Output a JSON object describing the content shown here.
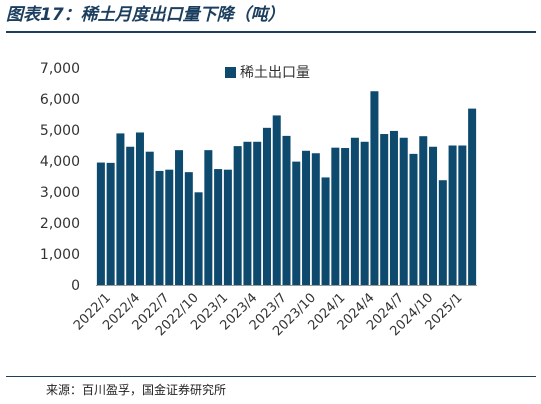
{
  "figure": {
    "title": "图表17：稀土月度出口量下降（吨）",
    "source": "来源：百川盈孚，国金证券研究所"
  },
  "colors": {
    "bar": "#0d4a6e",
    "title": "#1c3f5f",
    "axis": "#9a9a9a",
    "text": "#333333"
  },
  "chart_data": {
    "type": "bar",
    "categories": [
      "2022/1",
      "2022/2",
      "2022/3",
      "2022/4",
      "2022/5",
      "2022/6",
      "2022/7",
      "2022/8",
      "2022/9",
      "2022/10",
      "2022/11",
      "2022/12",
      "2023/1",
      "2023/2",
      "2023/3",
      "2023/4",
      "2023/5",
      "2023/6",
      "2023/7",
      "2023/8",
      "2023/9",
      "2023/10",
      "2023/11",
      "2023/12",
      "2024/1",
      "2024/2",
      "2024/3",
      "2024/4",
      "2024/5",
      "2024/6",
      "2024/7",
      "2024/8",
      "2024/9",
      "2024/10",
      "2024/11",
      "2024/12",
      "2025/1",
      "2025/2",
      "2025/3"
    ],
    "tick_labels": [
      "2022/1",
      "2022/4",
      "2022/7",
      "2022/10",
      "2023/1",
      "2023/4",
      "2023/7",
      "2023/10",
      "2024/1",
      "2024/4",
      "2024/7",
      "2024/10",
      "2025/1"
    ],
    "series": [
      {
        "name": "稀土出口量",
        "values": [
          3950,
          3940,
          4890,
          4460,
          4920,
          4300,
          3680,
          3720,
          4350,
          3640,
          2990,
          4350,
          3740,
          3720,
          4480,
          4620,
          4620,
          5070,
          5470,
          4810,
          3980,
          4330,
          4250,
          3470,
          4430,
          4420,
          4750,
          4620,
          6250,
          4870,
          4970,
          4750,
          4230,
          4800,
          4460,
          3380,
          4500,
          4500,
          5690
        ]
      }
    ],
    "yticks": [
      0,
      1000,
      2000,
      3000,
      4000,
      5000,
      6000,
      7000
    ],
    "ytick_labels": [
      "0",
      "1,000",
      "2,000",
      "3,000",
      "4,000",
      "5,000",
      "6,000",
      "7,000"
    ],
    "ylim": [
      0,
      7000
    ],
    "grid": false,
    "legend": "top-center"
  }
}
